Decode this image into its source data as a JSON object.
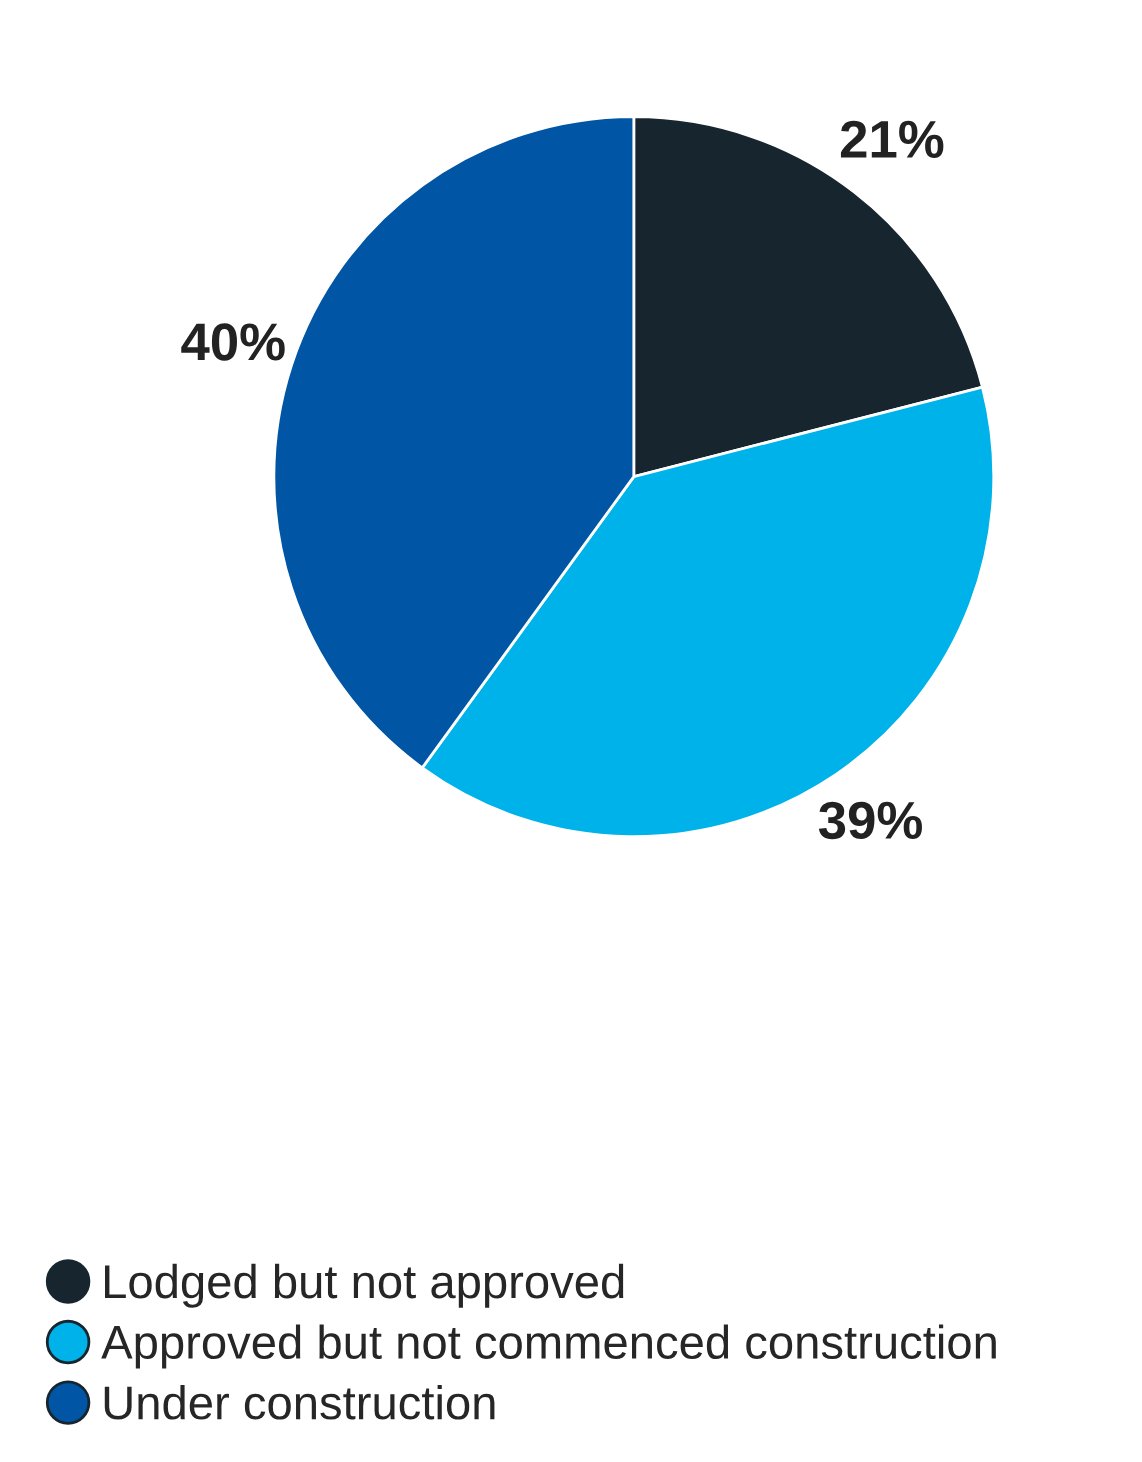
{
  "chart_data": {
    "type": "pie",
    "categories": [
      "Lodged but not approved",
      "Approved but not commenced construction",
      "Under construction"
    ],
    "values": [
      21,
      39,
      40
    ],
    "colors": [
      "#17252f",
      "#00b2ea",
      "#0055a5"
    ],
    "value_labels": [
      "21%",
      "39%",
      "40%"
    ],
    "legend": "bottom"
  }
}
